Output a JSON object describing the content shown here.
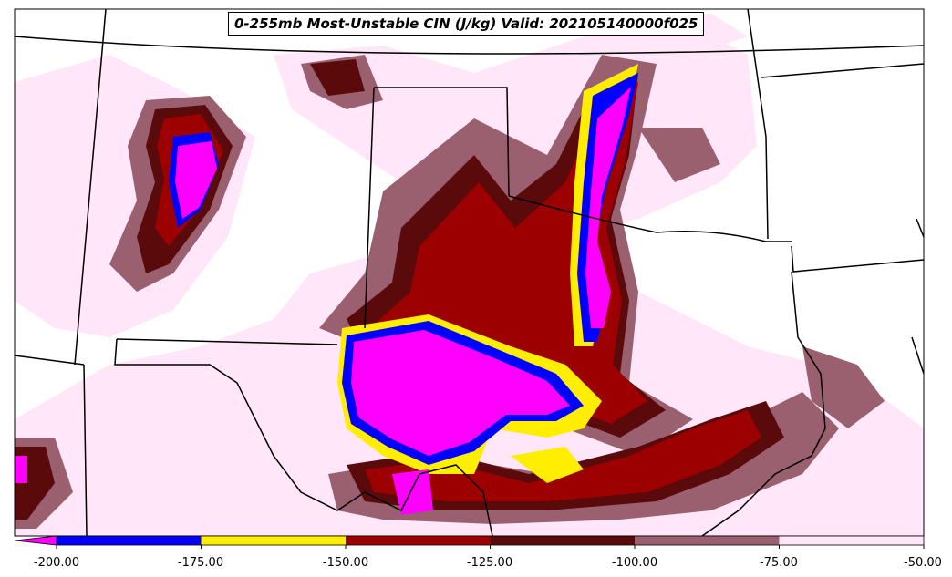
{
  "title": "0-255mb Most-Unstable CIN (J/kg) Valid: 202105140000f025",
  "colorbar": {
    "segments": [
      {
        "from": -200,
        "to": -175,
        "color": "#0000ff"
      },
      {
        "from": -175,
        "to": -150,
        "color": "#ffee00"
      },
      {
        "from": -150,
        "to": -125,
        "color": "#9c0000"
      },
      {
        "from": -125,
        "to": -100,
        "color": "#5a0a0a"
      },
      {
        "from": -100,
        "to": -75,
        "color": "#9a6070"
      },
      {
        "from": -75,
        "to": -50,
        "color": "#ffe6f8"
      }
    ],
    "extend_below_color": "#ff00ff",
    "tick_labels": [
      "-200.00",
      "-175.00",
      "-150.00",
      "-125.00",
      "-100.00",
      "-75.00",
      "-50.00"
    ]
  },
  "colors": {
    "magenta": "#ff00ff",
    "blue": "#0000ff",
    "yellow": "#ffee00",
    "red": "#9c0000",
    "darkred": "#5a0a0a",
    "mauve": "#9a6070",
    "pink": "#ffe6f8",
    "border": "#000000"
  }
}
